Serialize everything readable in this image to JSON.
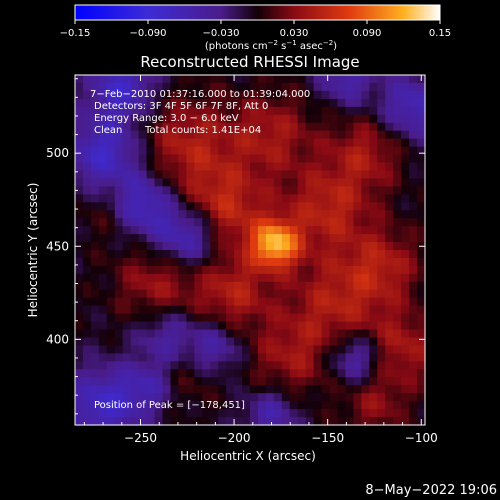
{
  "chart_data": {
    "type": "heatmap",
    "title": "Reconstructed RHESSI Image",
    "xlabel": "Heliocentric X (arcsec)",
    "ylabel": "Heliocentric Y (arcsec)",
    "xlim": [
      -285,
      -98
    ],
    "ylim": [
      354,
      542
    ],
    "x_ticks": [
      -250,
      -200,
      -150,
      -100
    ],
    "y_ticks": [
      400,
      450,
      500
    ],
    "x_tick_labels": [
      "−250",
      "−200",
      "−150",
      "−100"
    ],
    "y_tick_labels": [
      "400",
      "450",
      "500"
    ],
    "colorbar": {
      "range": [
        -0.15,
        0.15
      ],
      "ticks": [
        -0.15,
        -0.09,
        -0.03,
        0.03,
        0.09,
        0.15
      ],
      "tick_labels": [
        "−0.15",
        "−0.090",
        "−0.030",
        "0.030",
        "0.090",
        "0.15"
      ],
      "units_text": "(photons cm",
      "units_exp1": "−2",
      "units_mid": " s",
      "units_exp2": "−1",
      "units_mid2": " asec",
      "units_exp3": "−2",
      "units_end": ")"
    },
    "annotations": {
      "time_range": "7−Feb−2010 01:37:16.000 to 01:39:04.000",
      "detectors": "Detectors: 3F 4F 5F 6F 7F 8F, Att 0",
      "energy": "Energy Range: 3.0 − 6.0 keV",
      "method": "Clean",
      "counts": "Total counts: 1.41E+04",
      "peak": "Position of Peak = [−178,451]"
    },
    "peak": {
      "x": -178,
      "y": 451,
      "value": 0.15
    },
    "sources": [
      {
        "x": -178,
        "y": 451,
        "sigma": 9,
        "amp": 0.12
      },
      {
        "x": -205,
        "y": 470,
        "sigma": 16,
        "amp": 0.06
      },
      {
        "x": -150,
        "y": 470,
        "sigma": 16,
        "amp": 0.055
      },
      {
        "x": -225,
        "y": 505,
        "sigma": 18,
        "amp": 0.05
      },
      {
        "x": -180,
        "y": 510,
        "sigma": 16,
        "amp": 0.045
      },
      {
        "x": -130,
        "y": 500,
        "sigma": 14,
        "amp": 0.045
      },
      {
        "x": -240,
        "y": 430,
        "sigma": 16,
        "amp": 0.045
      },
      {
        "x": -200,
        "y": 425,
        "sigma": 14,
        "amp": 0.05
      },
      {
        "x": -145,
        "y": 420,
        "sigma": 18,
        "amp": 0.05
      },
      {
        "x": -120,
        "y": 440,
        "sigma": 14,
        "amp": 0.045
      },
      {
        "x": -110,
        "y": 395,
        "sigma": 14,
        "amp": 0.045
      },
      {
        "x": -170,
        "y": 390,
        "sigma": 16,
        "amp": 0.04
      },
      {
        "x": -230,
        "y": 385,
        "sigma": 14,
        "amp": 0.035
      },
      {
        "x": -125,
        "y": 365,
        "sigma": 12,
        "amp": 0.035
      },
      {
        "x": -265,
        "y": 470,
        "sigma": 12,
        "amp": 0.03
      }
    ],
    "negative_bands": [
      {
        "x": -250,
        "y": 472,
        "sigma": 12,
        "amp": -0.075
      },
      {
        "x": -225,
        "y": 455,
        "sigma": 12,
        "amp": -0.075
      },
      {
        "x": -270,
        "y": 500,
        "sigma": 14,
        "amp": -0.07
      },
      {
        "x": -270,
        "y": 365,
        "sigma": 14,
        "amp": -0.07
      },
      {
        "x": -245,
        "y": 375,
        "sigma": 10,
        "amp": -0.05
      },
      {
        "x": -235,
        "y": 400,
        "sigma": 12,
        "amp": -0.06
      },
      {
        "x": -210,
        "y": 395,
        "sigma": 10,
        "amp": -0.05
      },
      {
        "x": -135,
        "y": 390,
        "sigma": 10,
        "amp": -0.06
      },
      {
        "x": -260,
        "y": 535,
        "sigma": 12,
        "amp": -0.07
      },
      {
        "x": -105,
        "y": 525,
        "sigma": 12,
        "amp": -0.06
      },
      {
        "x": -140,
        "y": 540,
        "sigma": 10,
        "amp": -0.05
      },
      {
        "x": -180,
        "y": 360,
        "sigma": 10,
        "amp": -0.05
      }
    ]
  },
  "footer": {
    "timestamp": "8−May−2022 19:06"
  }
}
